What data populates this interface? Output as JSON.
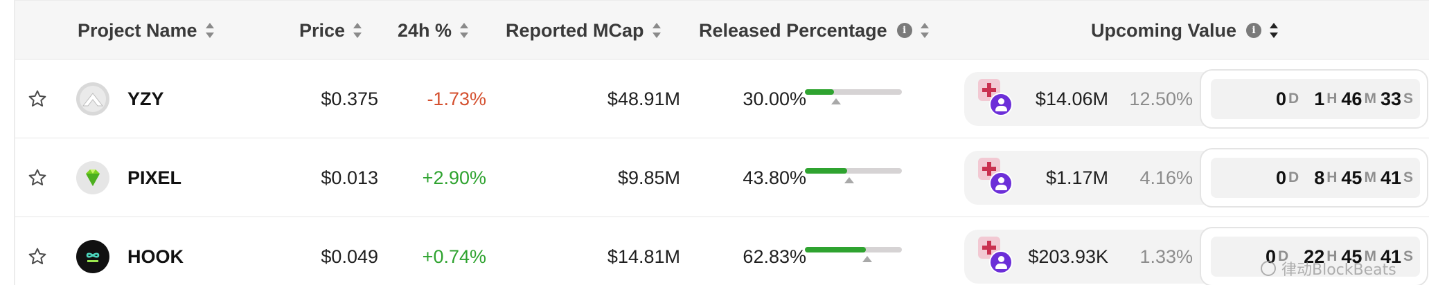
{
  "header": {
    "project_name": "Project Name",
    "price": "Price",
    "change_24h": "24h %",
    "reported_mcap": "Reported MCap",
    "released_percentage": "Released Percentage",
    "upcoming_value": "Upcoming Value",
    "info_glyph": "i"
  },
  "rows": [
    {
      "name": "YZY",
      "price": "$0.375",
      "change": "-1.73%",
      "change_dir": "neg",
      "mcap": "$48.91M",
      "released": "30.00%",
      "released_fraction": 0.3,
      "marker_fraction": 0.32,
      "upcoming_value": "$14.06M",
      "upcoming_pct": "12.50%",
      "countdown": {
        "d": "0",
        "h": "1",
        "m": "46",
        "s": "33"
      }
    },
    {
      "name": "PIXEL",
      "price": "$0.013",
      "change": "+2.90%",
      "change_dir": "pos",
      "mcap": "$9.85M",
      "released": "43.80%",
      "released_fraction": 0.438,
      "marker_fraction": 0.455,
      "upcoming_value": "$1.17M",
      "upcoming_pct": "4.16%",
      "countdown": {
        "d": "0",
        "h": "8",
        "m": "45",
        "s": "41"
      }
    },
    {
      "name": "HOOK",
      "price": "$0.049",
      "change": "+0.74%",
      "change_dir": "pos",
      "mcap": "$14.81M",
      "released": "62.83%",
      "released_fraction": 0.6283,
      "marker_fraction": 0.642,
      "upcoming_value": "$203.93K",
      "upcoming_pct": "1.33%",
      "countdown": {
        "d": "0",
        "h": "22",
        "m": "45",
        "s": "41"
      }
    }
  ],
  "units": {
    "d": "D",
    "h": "H",
    "m": "M",
    "s": "S"
  },
  "icons": {
    "star": "star-outline-icon",
    "yzy_logo": "yzy-logo",
    "pixel_logo": "pixel-gem-logo",
    "hook_logo": "hook-infinity-logo"
  },
  "colors": {
    "negative": "#d4502f",
    "positive": "#2fa330",
    "progress_fill": "#2fa330",
    "countdown_badge": "#6c2fd8"
  },
  "watermark": "律动BlockBeats"
}
